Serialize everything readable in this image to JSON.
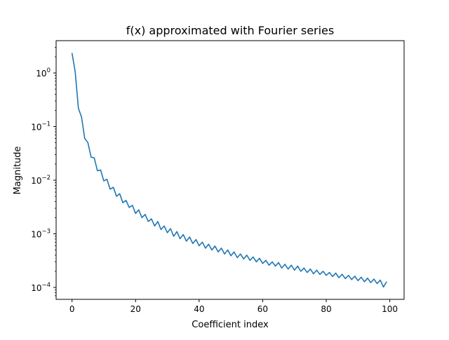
{
  "chart_data": {
    "type": "line",
    "title": "f(x) approximated with Fourier series",
    "xlabel": "Coefficient index",
    "ylabel": "Magnitude",
    "xscale": "linear",
    "yscale": "log",
    "xlim": [
      -5,
      104.5
    ],
    "ylim": [
      6e-05,
      4.0
    ],
    "xticks": [
      0,
      20,
      40,
      60,
      80,
      100
    ],
    "xtick_labels": [
      "0",
      "20",
      "40",
      "60",
      "80",
      "100"
    ],
    "yticks": [
      0.0001,
      0.001,
      0.01,
      0.1,
      1
    ],
    "ytick_bases": [
      "10",
      "10",
      "10",
      "10",
      "10"
    ],
    "ytick_exponents": [
      "−4",
      "−3",
      "−2",
      "−1",
      "0"
    ],
    "grid": false,
    "line_color": "#1f77b4",
    "series": [
      {
        "values": [
          2.35,
          1.05,
          0.22,
          0.15,
          0.06,
          0.05,
          0.027,
          0.026,
          0.015,
          0.0155,
          0.0097,
          0.0104,
          0.0068,
          0.0074,
          0.005,
          0.0056,
          0.0038,
          0.0042,
          0.0031,
          0.0034,
          0.0024,
          0.0028,
          0.002,
          0.0023,
          0.0017,
          0.0019,
          0.0014,
          0.0017,
          0.0012,
          0.0014,
          0.00105,
          0.00125,
          0.0009,
          0.0011,
          0.00081,
          0.00097,
          0.00073,
          0.00087,
          0.00066,
          0.00078,
          0.0006,
          0.0007,
          0.00054,
          0.00064,
          0.0005,
          0.00059,
          0.00046,
          0.00054,
          0.00042,
          0.0005,
          0.00039,
          0.00046,
          0.00036,
          0.00042,
          0.00034,
          0.0004,
          0.00032,
          0.00037,
          0.0003,
          0.00035,
          0.00028,
          0.00032,
          0.00026,
          0.0003,
          0.00025,
          0.00029,
          0.00023,
          0.00027,
          0.00022,
          0.00026,
          0.00021,
          0.00025,
          0.0002,
          0.00023,
          0.00019,
          0.00022,
          0.00018,
          0.00021,
          0.000175,
          0.0002,
          0.000168,
          0.00019,
          0.00016,
          0.000185,
          0.000152,
          0.000176,
          0.000146,
          0.000168,
          0.00014,
          0.000162,
          0.000134,
          0.000155,
          0.000128,
          0.000149,
          0.000123,
          0.000143,
          0.000118,
          0.000137,
          0.000102,
          0.000128
        ]
      }
    ]
  }
}
